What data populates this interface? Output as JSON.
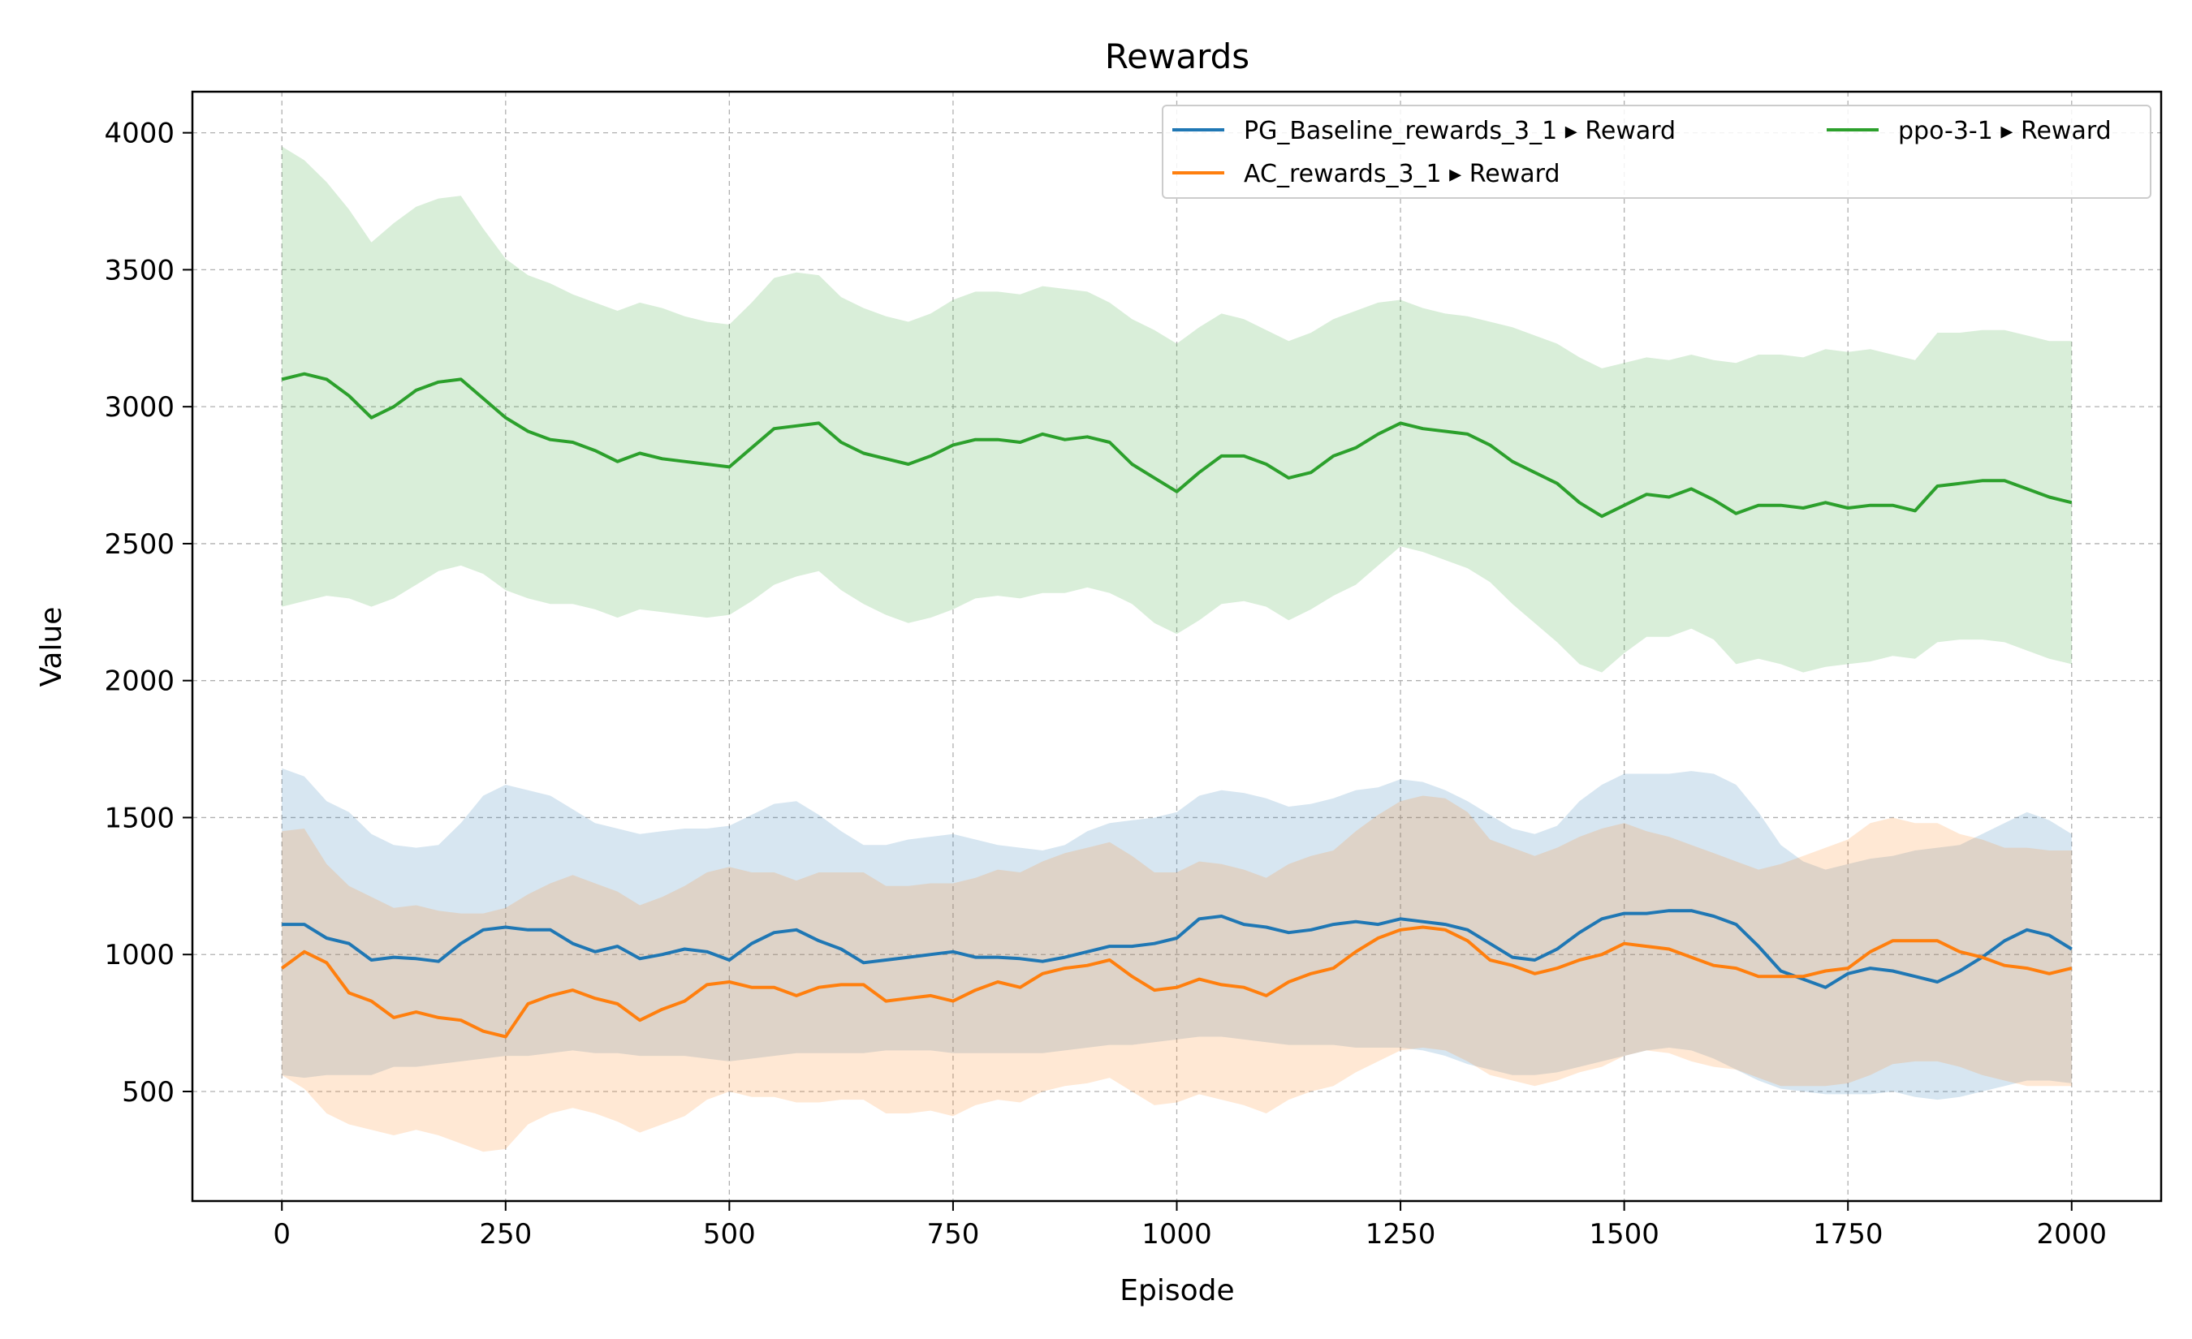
{
  "chart_data": {
    "type": "line",
    "title": "Rewards",
    "xlabel": "Episode",
    "ylabel": "Value",
    "xlim": [
      -100,
      2100
    ],
    "ylim": [
      100,
      4150
    ],
    "xticks": [
      0,
      250,
      500,
      750,
      1000,
      1250,
      1500,
      1750,
      2000
    ],
    "yticks": [
      500,
      1000,
      1500,
      2000,
      2500,
      3000,
      3500,
      4000
    ],
    "grid": true,
    "legend_placement": "top-right",
    "legend_columns": 2,
    "band_alpha": 0.18,
    "series": [
      {
        "name": "PG_Baseline_rewards_3_1 ▸ Reward",
        "color": "#1f77b4",
        "x": [
          0,
          25,
          50,
          75,
          100,
          125,
          150,
          175,
          200,
          225,
          250,
          275,
          300,
          325,
          350,
          375,
          400,
          425,
          450,
          475,
          500,
          525,
          550,
          575,
          600,
          625,
          650,
          675,
          700,
          725,
          750,
          775,
          800,
          825,
          850,
          875,
          900,
          925,
          950,
          975,
          1000,
          1025,
          1050,
          1075,
          1100,
          1125,
          1150,
          1175,
          1200,
          1225,
          1250,
          1275,
          1300,
          1325,
          1350,
          1375,
          1400,
          1425,
          1450,
          1475,
          1500,
          1525,
          1550,
          1575,
          1600,
          1625,
          1650,
          1675,
          1700,
          1725,
          1750,
          1775,
          1800,
          1825,
          1850,
          1875,
          1900,
          1925,
          1950,
          1975,
          2000
        ],
        "y": [
          1110,
          1110,
          1060,
          1040,
          980,
          990,
          985,
          975,
          1040,
          1090,
          1100,
          1090,
          1090,
          1040,
          1010,
          1030,
          985,
          1000,
          1020,
          1010,
          980,
          1040,
          1080,
          1090,
          1050,
          1020,
          970,
          980,
          990,
          1000,
          1010,
          990,
          990,
          985,
          975,
          990,
          1010,
          1030,
          1030,
          1040,
          1060,
          1130,
          1140,
          1110,
          1100,
          1080,
          1090,
          1110,
          1120,
          1110,
          1130,
          1120,
          1110,
          1090,
          1040,
          990,
          980,
          1020,
          1080,
          1130,
          1150,
          1150,
          1160,
          1160,
          1140,
          1110,
          1030,
          940,
          910,
          880,
          930,
          950,
          940,
          920,
          900,
          940,
          990,
          1050,
          1090,
          1070,
          1020
        ],
        "lower": [
          560,
          550,
          560,
          560,
          560,
          590,
          590,
          600,
          610,
          620,
          630,
          630,
          640,
          650,
          640,
          640,
          630,
          630,
          630,
          620,
          610,
          620,
          630,
          640,
          640,
          640,
          640,
          650,
          650,
          650,
          640,
          640,
          640,
          640,
          640,
          650,
          660,
          670,
          670,
          680,
          690,
          700,
          700,
          690,
          680,
          670,
          670,
          670,
          660,
          660,
          660,
          650,
          630,
          600,
          580,
          560,
          560,
          570,
          590,
          610,
          630,
          650,
          660,
          650,
          620,
          580,
          540,
          510,
          500,
          490,
          490,
          490,
          500,
          480,
          470,
          480,
          500,
          520,
          540,
          540,
          530
        ],
        "upper": [
          1680,
          1650,
          1560,
          1520,
          1440,
          1400,
          1390,
          1400,
          1480,
          1580,
          1620,
          1600,
          1580,
          1530,
          1480,
          1460,
          1440,
          1450,
          1460,
          1460,
          1470,
          1510,
          1550,
          1560,
          1510,
          1450,
          1400,
          1400,
          1420,
          1430,
          1440,
          1420,
          1400,
          1390,
          1380,
          1400,
          1450,
          1480,
          1490,
          1500,
          1520,
          1580,
          1600,
          1590,
          1570,
          1540,
          1550,
          1570,
          1600,
          1610,
          1640,
          1630,
          1600,
          1560,
          1510,
          1460,
          1440,
          1470,
          1560,
          1620,
          1660,
          1660,
          1660,
          1670,
          1660,
          1620,
          1520,
          1400,
          1340,
          1310,
          1330,
          1350,
          1360,
          1380,
          1390,
          1400,
          1440,
          1480,
          1520,
          1490,
          1440
        ]
      },
      {
        "name": "AC_rewards_3_1 ▸ Reward",
        "color": "#ff7f0e",
        "x": [
          0,
          25,
          50,
          75,
          100,
          125,
          150,
          175,
          200,
          225,
          250,
          275,
          300,
          325,
          350,
          375,
          400,
          425,
          450,
          475,
          500,
          525,
          550,
          575,
          600,
          625,
          650,
          675,
          700,
          725,
          750,
          775,
          800,
          825,
          850,
          875,
          900,
          925,
          950,
          975,
          1000,
          1025,
          1050,
          1075,
          1100,
          1125,
          1150,
          1175,
          1200,
          1225,
          1250,
          1275,
          1300,
          1325,
          1350,
          1375,
          1400,
          1425,
          1450,
          1475,
          1500,
          1525,
          1550,
          1575,
          1600,
          1625,
          1650,
          1675,
          1700,
          1725,
          1750,
          1775,
          1800,
          1825,
          1850,
          1875,
          1900,
          1925,
          1950,
          1975,
          2000
        ],
        "y": [
          950,
          1010,
          970,
          860,
          830,
          770,
          790,
          770,
          760,
          720,
          700,
          820,
          850,
          870,
          840,
          820,
          760,
          800,
          830,
          890,
          900,
          880,
          880,
          850,
          880,
          890,
          890,
          830,
          840,
          850,
          830,
          870,
          900,
          880,
          930,
          950,
          960,
          980,
          920,
          870,
          880,
          910,
          890,
          880,
          850,
          900,
          930,
          950,
          1010,
          1060,
          1090,
          1100,
          1090,
          1050,
          980,
          960,
          930,
          950,
          980,
          1000,
          1040,
          1030,
          1020,
          990,
          960,
          950,
          920,
          920,
          920,
          940,
          950,
          1010,
          1050,
          1050,
          1050,
          1010,
          990,
          960,
          950,
          930,
          950
        ],
        "lower": [
          560,
          510,
          420,
          380,
          360,
          340,
          360,
          340,
          310,
          280,
          290,
          380,
          420,
          440,
          420,
          390,
          350,
          380,
          410,
          470,
          500,
          480,
          480,
          460,
          460,
          470,
          470,
          420,
          420,
          430,
          410,
          450,
          470,
          460,
          500,
          520,
          530,
          550,
          500,
          450,
          460,
          490,
          470,
          450,
          420,
          470,
          500,
          520,
          570,
          610,
          650,
          660,
          650,
          610,
          560,
          540,
          520,
          540,
          570,
          590,
          630,
          650,
          640,
          610,
          590,
          580,
          550,
          520,
          520,
          520,
          530,
          560,
          600,
          610,
          610,
          590,
          560,
          540,
          520,
          520,
          520
        ],
        "upper": [
          1450,
          1460,
          1330,
          1250,
          1210,
          1170,
          1180,
          1160,
          1150,
          1150,
          1170,
          1220,
          1260,
          1290,
          1260,
          1230,
          1180,
          1210,
          1250,
          1300,
          1320,
          1300,
          1300,
          1270,
          1300,
          1300,
          1300,
          1250,
          1250,
          1260,
          1260,
          1280,
          1310,
          1300,
          1340,
          1370,
          1390,
          1410,
          1360,
          1300,
          1300,
          1340,
          1330,
          1310,
          1280,
          1330,
          1360,
          1380,
          1450,
          1510,
          1560,
          1580,
          1570,
          1520,
          1420,
          1390,
          1360,
          1390,
          1430,
          1460,
          1480,
          1450,
          1430,
          1400,
          1370,
          1340,
          1310,
          1330,
          1360,
          1390,
          1420,
          1480,
          1500,
          1480,
          1480,
          1440,
          1420,
          1390,
          1390,
          1380,
          1380
        ]
      },
      {
        "name": "ppo-3-1 ▸ Reward",
        "color": "#2ca02c",
        "x": [
          0,
          25,
          50,
          75,
          100,
          125,
          150,
          175,
          200,
          225,
          250,
          275,
          300,
          325,
          350,
          375,
          400,
          425,
          450,
          475,
          500,
          525,
          550,
          575,
          600,
          625,
          650,
          675,
          700,
          725,
          750,
          775,
          800,
          825,
          850,
          875,
          900,
          925,
          950,
          975,
          1000,
          1025,
          1050,
          1075,
          1100,
          1125,
          1150,
          1175,
          1200,
          1225,
          1250,
          1275,
          1300,
          1325,
          1350,
          1375,
          1400,
          1425,
          1450,
          1475,
          1500,
          1525,
          1550,
          1575,
          1600,
          1625,
          1650,
          1675,
          1700,
          1725,
          1750,
          1775,
          1800,
          1825,
          1850,
          1875,
          1900,
          1925,
          1950,
          1975,
          2000
        ],
        "y": [
          3100,
          3120,
          3100,
          3040,
          2960,
          3000,
          3060,
          3090,
          3100,
          3030,
          2960,
          2910,
          2880,
          2870,
          2840,
          2800,
          2830,
          2810,
          2800,
          2790,
          2780,
          2850,
          2920,
          2930,
          2940,
          2870,
          2830,
          2810,
          2790,
          2820,
          2860,
          2880,
          2880,
          2870,
          2900,
          2880,
          2890,
          2870,
          2790,
          2740,
          2690,
          2760,
          2820,
          2820,
          2790,
          2740,
          2760,
          2820,
          2850,
          2900,
          2940,
          2920,
          2910,
          2900,
          2860,
          2800,
          2760,
          2720,
          2650,
          2600,
          2640,
          2680,
          2670,
          2700,
          2660,
          2610,
          2640,
          2640,
          2630,
          2650,
          2630,
          2640,
          2640,
          2620,
          2710,
          2720,
          2730,
          2730,
          2700,
          2670,
          2650
        ],
        "lower": [
          2270,
          2290,
          2310,
          2300,
          2270,
          2300,
          2350,
          2400,
          2420,
          2390,
          2330,
          2300,
          2280,
          2280,
          2260,
          2230,
          2260,
          2250,
          2240,
          2230,
          2240,
          2290,
          2350,
          2380,
          2400,
          2330,
          2280,
          2240,
          2210,
          2230,
          2260,
          2300,
          2310,
          2300,
          2320,
          2320,
          2340,
          2320,
          2280,
          2210,
          2170,
          2220,
          2280,
          2290,
          2270,
          2220,
          2260,
          2310,
          2350,
          2420,
          2490,
          2470,
          2440,
          2410,
          2360,
          2280,
          2210,
          2140,
          2060,
          2030,
          2100,
          2160,
          2160,
          2190,
          2150,
          2060,
          2080,
          2060,
          2030,
          2050,
          2060,
          2070,
          2090,
          2080,
          2140,
          2150,
          2150,
          2140,
          2110,
          2080,
          2060
        ],
        "upper": [
          3950,
          3900,
          3820,
          3720,
          3600,
          3670,
          3730,
          3760,
          3770,
          3650,
          3540,
          3480,
          3450,
          3410,
          3380,
          3350,
          3380,
          3360,
          3330,
          3310,
          3300,
          3380,
          3470,
          3490,
          3480,
          3400,
          3360,
          3330,
          3310,
          3340,
          3390,
          3420,
          3420,
          3410,
          3440,
          3430,
          3420,
          3380,
          3320,
          3280,
          3230,
          3290,
          3340,
          3320,
          3280,
          3240,
          3270,
          3320,
          3350,
          3380,
          3390,
          3360,
          3340,
          3330,
          3310,
          3290,
          3260,
          3230,
          3180,
          3140,
          3160,
          3180,
          3170,
          3190,
          3170,
          3160,
          3190,
          3190,
          3180,
          3210,
          3200,
          3210,
          3190,
          3170,
          3270,
          3270,
          3280,
          3280,
          3260,
          3240,
          3240
        ]
      }
    ]
  }
}
